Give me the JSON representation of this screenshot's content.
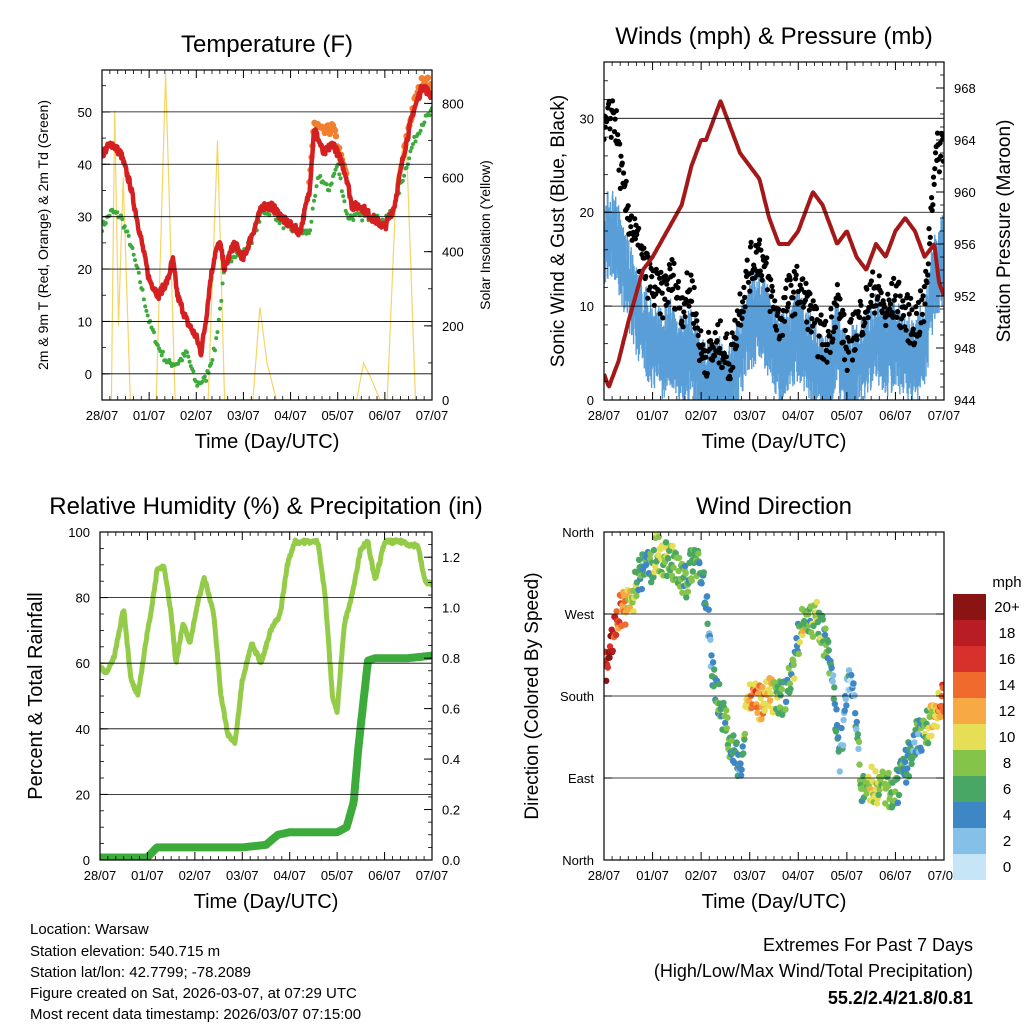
{
  "colors": {
    "temp_red": "#d42020",
    "temp_orange": "#f08030",
    "dewpoint_green": "#3cab3c",
    "solar_yellow": "#f5d565",
    "wind_blue": "#5a9ed8",
    "gust_black": "#000000",
    "pressure_maroon": "#a31919",
    "rh_green": "#94cc4a",
    "precip_green": "#3cab3c",
    "extremes_red": "#c8202a"
  },
  "footer": {
    "location": "Location: Warsaw",
    "elevation": "Station elevation: 540.715 m",
    "latlon": "Station lat/lon: 42.7799; -78.2089",
    "created": "Figure created on Sat, 2026-03-07, at 07:29 UTC",
    "recent": "Most recent data timestamp: 2026/03/07 07:15:00"
  },
  "extremes": {
    "title": "Extremes For Past 7 Days",
    "subtitle": "(High/Low/Max Wind/Total Precipitation)",
    "values": "55.2/2.4/21.8/0.81"
  },
  "chart_data": [
    {
      "type": "line",
      "title": "Temperature (F)",
      "xlabel": "Time (Day/UTC)",
      "ylabel": "2m & 9m T (Red, Orange) & 2m Td (Green)",
      "y2label": "Solar Insolation (Yellow)",
      "xticks": [
        "28/07",
        "01/07",
        "02/07",
        "03/07",
        "04/07",
        "05/07",
        "06/07",
        "07/07"
      ],
      "xlim": [
        0,
        7
      ],
      "ylim": [
        -5,
        58
      ],
      "yticks": [
        0,
        10,
        20,
        30,
        40,
        50
      ],
      "y2lim": [
        0,
        890
      ],
      "y2ticks": [
        0,
        200,
        400,
        600,
        800
      ],
      "grid": true,
      "series": [
        {
          "name": "2m T",
          "color": "temp_red",
          "x": [
            0,
            0.2,
            0.4,
            0.6,
            0.8,
            1.0,
            1.2,
            1.4,
            1.5,
            1.6,
            1.8,
            2.0,
            2.1,
            2.2,
            2.3,
            2.4,
            2.5,
            2.6,
            2.8,
            3.0,
            3.2,
            3.4,
            3.6,
            3.9,
            4.2,
            4.4,
            4.5,
            4.7,
            4.9,
            5.1,
            5.2,
            5.3,
            5.5,
            5.7,
            6.0,
            6.2,
            6.4,
            6.6,
            6.8,
            7.0
          ],
          "y": [
            42,
            44,
            42,
            36,
            27,
            18,
            15,
            18,
            22,
            15,
            10,
            7,
            4,
            10,
            18,
            23,
            25,
            20,
            25,
            22,
            27,
            32,
            32,
            29,
            27,
            35,
            47,
            42,
            44,
            40,
            37,
            32,
            32,
            30,
            28,
            32,
            42,
            50,
            55,
            53
          ]
        },
        {
          "name": "9m T",
          "color": "temp_orange",
          "x": [
            4.4,
            4.5,
            4.7,
            4.9,
            5.1,
            5.2,
            6.4,
            6.6,
            6.8,
            6.9,
            7.0
          ],
          "y": [
            36,
            48,
            46,
            47,
            40,
            38,
            42,
            51,
            56,
            56,
            54
          ]
        },
        {
          "name": "2m Td",
          "color": "dewpoint_green",
          "x": [
            0,
            0.2,
            0.4,
            0.6,
            0.8,
            1.0,
            1.2,
            1.4,
            1.6,
            1.8,
            2.0,
            2.2,
            2.4,
            2.5,
            2.6,
            2.8,
            3.0,
            3.2,
            3.4,
            3.6,
            3.9,
            4.2,
            4.4,
            4.6,
            4.8,
            5.0,
            5.2,
            5.5,
            5.7,
            6.0,
            6.2,
            6.4,
            6.6,
            6.8,
            7.0
          ],
          "y": [
            28,
            31,
            30,
            25,
            18,
            10,
            5,
            2,
            2,
            4,
            -2,
            -1,
            5,
            12,
            20,
            23,
            23,
            26,
            31,
            31,
            28,
            27,
            27,
            38,
            35,
            40,
            30,
            30,
            30,
            29,
            32,
            38,
            44,
            48,
            50
          ]
        },
        {
          "name": "Solar Insolation",
          "color": "solar_yellow",
          "axis": "y2",
          "x": [
            0,
            0.2,
            0.27,
            0.35,
            0.45,
            0.6,
            1.15,
            1.35,
            1.55,
            1.8,
            2.25,
            2.45,
            2.6,
            2.8,
            3.2,
            3.35,
            3.5,
            3.7,
            5.4,
            5.55,
            5.7,
            5.9,
            6.05,
            6.25,
            6.45,
            6.65,
            6.8
          ],
          "y": [
            0,
            0,
            780,
            200,
            600,
            0,
            0,
            880,
            0,
            0,
            0,
            700,
            0,
            0,
            0,
            250,
            100,
            0,
            0,
            100,
            60,
            0,
            0,
            600,
            720,
            0,
            0
          ]
        }
      ]
    },
    {
      "type": "line",
      "title": "Winds (mph) & Pressure (mb)",
      "xlabel": "Time (Day/UTC)",
      "ylabel": "Sonic Wind & Gust (Blue, Black)",
      "y2label": "Station Pressure (Maroon)",
      "xticks": [
        "28/07",
        "01/07",
        "02/07",
        "03/07",
        "04/07",
        "05/07",
        "06/07",
        "07/07"
      ],
      "xlim": [
        0,
        7
      ],
      "ylim": [
        0,
        36
      ],
      "yticks": [
        0,
        10,
        20,
        30
      ],
      "y2lim": [
        944,
        970
      ],
      "y2ticks": [
        944,
        948,
        952,
        956,
        960,
        964,
        968
      ],
      "grid": true,
      "series": [
        {
          "name": "Sonic Wind",
          "color": "wind_blue",
          "x": [
            0,
            0.2,
            0.4,
            0.7,
            1.0,
            1.2,
            1.4,
            1.6,
            1.8,
            2.0,
            2.2,
            2.4,
            2.6,
            2.8,
            3.0,
            3.2,
            3.4,
            3.6,
            3.8,
            4.0,
            4.2,
            4.4,
            4.6,
            4.8,
            5.0,
            5.2,
            5.4,
            5.6,
            5.8,
            6.0,
            6.2,
            6.4,
            6.6,
            6.8,
            7.0
          ],
          "y": [
            18,
            19,
            15,
            10,
            7,
            6,
            7,
            5,
            6,
            3,
            2,
            3,
            2,
            6,
            9,
            10,
            8,
            5,
            7,
            8,
            6,
            4,
            3,
            7,
            3,
            5,
            6,
            8,
            6,
            7,
            6,
            5,
            7,
            14,
            16
          ]
        },
        {
          "name": "Gust",
          "color": "gust_black",
          "x": [
            0,
            0.2,
            0.4,
            0.7,
            1.0,
            1.2,
            1.4,
            1.6,
            1.8,
            2.0,
            2.2,
            2.4,
            2.6,
            2.8,
            3.0,
            3.2,
            3.4,
            3.6,
            3.8,
            4.0,
            4.2,
            4.4,
            4.6,
            4.8,
            5.0,
            5.2,
            5.4,
            5.6,
            5.8,
            6.0,
            6.2,
            6.4,
            6.6,
            6.8,
            7.0
          ],
          "y": [
            28,
            31,
            22,
            16,
            12,
            11,
            13,
            10,
            12,
            5,
            5,
            6,
            4,
            10,
            14,
            16,
            12,
            8,
            11,
            12,
            10,
            7,
            6,
            11,
            5,
            8,
            10,
            12,
            9,
            11,
            9,
            8,
            10,
            25,
            28
          ]
        },
        {
          "name": "Station Pressure",
          "color": "pressure_maroon",
          "axis": "y2",
          "x": [
            0,
            0.1,
            0.3,
            0.5,
            0.8,
            1.0,
            1.3,
            1.6,
            1.8,
            2.0,
            2.1,
            2.3,
            2.4,
            2.6,
            2.8,
            3.0,
            3.2,
            3.4,
            3.6,
            3.8,
            4.0,
            4.2,
            4.3,
            4.5,
            4.8,
            5.0,
            5.2,
            5.4,
            5.6,
            5.8,
            6.0,
            6.2,
            6.4,
            6.6,
            6.8,
            6.9,
            7.0
          ],
          "y": [
            946,
            945,
            947,
            950,
            954,
            955,
            957,
            959,
            962,
            964,
            964,
            966,
            967,
            965,
            963,
            962,
            961,
            958,
            956,
            956,
            957,
            959,
            960,
            959,
            956,
            957,
            955,
            954,
            956,
            955,
            957,
            958,
            957,
            955,
            956,
            953,
            952
          ]
        }
      ]
    },
    {
      "type": "line",
      "title": "Relative Humidity (%) & Precipitation (in)",
      "xlabel": "Time (Day/UTC)",
      "ylabel": "Percent & Total Rainfall",
      "xticks": [
        "28/07",
        "01/07",
        "02/07",
        "03/07",
        "04/07",
        "05/07",
        "06/07",
        "07/07"
      ],
      "xlim": [
        0,
        7
      ],
      "ylim": [
        0,
        100
      ],
      "yticks": [
        0,
        20,
        40,
        60,
        80,
        100
      ],
      "y2lim": [
        0,
        1.3
      ],
      "y2ticks": [
        0.0,
        0.2,
        0.4,
        0.6,
        0.8,
        1.0,
        1.2
      ],
      "grid": true,
      "series": [
        {
          "name": "Relative Humidity",
          "color": "rh_green",
          "x": [
            0,
            0.15,
            0.3,
            0.5,
            0.65,
            0.8,
            0.95,
            1.1,
            1.2,
            1.35,
            1.5,
            1.6,
            1.75,
            1.9,
            2.05,
            2.2,
            2.4,
            2.55,
            2.7,
            2.85,
            3.0,
            3.2,
            3.4,
            3.6,
            3.8,
            3.95,
            4.1,
            4.3,
            4.45,
            4.6,
            4.75,
            4.9,
            5.0,
            5.15,
            5.3,
            5.5,
            5.65,
            5.8,
            6.0,
            6.2,
            6.4,
            6.55,
            6.7,
            6.85,
            7.0
          ],
          "y": [
            59,
            57,
            62,
            77,
            55,
            50,
            65,
            78,
            88,
            90,
            75,
            60,
            72,
            66,
            78,
            86,
            75,
            50,
            38,
            36,
            55,
            66,
            60,
            70,
            75,
            90,
            97,
            97,
            97,
            97,
            80,
            50,
            45,
            72,
            80,
            95,
            97,
            85,
            97,
            97,
            97,
            96,
            96,
            85,
            84
          ]
        },
        {
          "name": "Total Precipitation",
          "color": "precip_green",
          "axis": "y2",
          "x": [
            0,
            1.0,
            1.2,
            1.5,
            2.0,
            2.5,
            3.0,
            3.5,
            3.75,
            4.0,
            4.5,
            5.0,
            5.2,
            5.35,
            5.45,
            5.55,
            5.65,
            5.8,
            6.0,
            6.5,
            7.0
          ],
          "y": [
            0.01,
            0.01,
            0.05,
            0.05,
            0.05,
            0.05,
            0.05,
            0.06,
            0.1,
            0.11,
            0.11,
            0.11,
            0.13,
            0.23,
            0.45,
            0.62,
            0.79,
            0.8,
            0.8,
            0.8,
            0.81
          ]
        }
      ]
    },
    {
      "type": "scatter",
      "title": "Wind Direction",
      "xlabel": "Time (Day/UTC)",
      "ylabel": "Direction (Colored By Speed)",
      "xticks": [
        "28/07",
        "01/07",
        "02/07",
        "03/07",
        "04/07",
        "05/07",
        "06/07",
        "07/07"
      ],
      "xlim": [
        0,
        7
      ],
      "ylim": [
        0,
        360
      ],
      "yticks": [
        "North",
        "East",
        "South",
        "West",
        "North"
      ],
      "ytick_values": [
        0,
        90,
        180,
        270,
        360
      ],
      "grid": true,
      "colorbar": {
        "title": "mph",
        "labels": [
          "0",
          "2",
          "4",
          "6",
          "8",
          "10",
          "12",
          "14",
          "16",
          "18",
          "20+"
        ],
        "colors": [
          "#c6e6f8",
          "#84c0e8",
          "#3f86c4",
          "#4aa664",
          "#84c44a",
          "#e6de54",
          "#f7a943",
          "#ef6a2c",
          "#d8302a",
          "#b81d23",
          "#8a1414"
        ]
      },
      "series": [
        {
          "name": "direction",
          "x": [
            0,
            0.1,
            0.2,
            0.3,
            0.4,
            0.55,
            0.7,
            0.85,
            1.0,
            1.1,
            1.2,
            1.35,
            1.5,
            1.65,
            1.8,
            1.95,
            2.05,
            2.15,
            2.25,
            2.35,
            2.5,
            2.65,
            2.8,
            2.95,
            3.1,
            3.25,
            3.4,
            3.55,
            3.7,
            3.85,
            4.0,
            4.1,
            4.2,
            4.3,
            4.4,
            4.55,
            4.7,
            4.85,
            5.0,
            5.1,
            5.2,
            5.3,
            5.45,
            5.6,
            5.75,
            5.9,
            6.05,
            6.2,
            6.4,
            6.55,
            6.7,
            6.85,
            7.0
          ],
          "y": [
            210,
            220,
            250,
            270,
            275,
            280,
            310,
            320,
            325,
            340,
            330,
            330,
            320,
            300,
            325,
            330,
            300,
            260,
            200,
            180,
            150,
            120,
            100,
            180,
            175,
            170,
            180,
            175,
            180,
            200,
            240,
            270,
            270,
            260,
            265,
            240,
            200,
            110,
            180,
            200,
            150,
            70,
            85,
            80,
            80,
            75,
            80,
            100,
            130,
            140,
            150,
            160,
            180
          ],
          "speed": [
            18,
            19,
            17,
            15,
            12,
            10,
            6,
            5,
            7,
            9,
            8,
            7,
            9,
            5,
            8,
            6,
            5,
            3,
            4,
            6,
            7,
            5,
            4,
            11,
            13,
            12,
            10,
            8,
            6,
            7,
            6,
            9,
            7,
            8,
            9,
            6,
            5,
            4,
            3,
            2,
            4,
            6,
            9,
            9,
            8,
            7,
            6,
            5,
            4,
            6,
            8,
            12,
            15
          ]
        }
      ]
    }
  ]
}
